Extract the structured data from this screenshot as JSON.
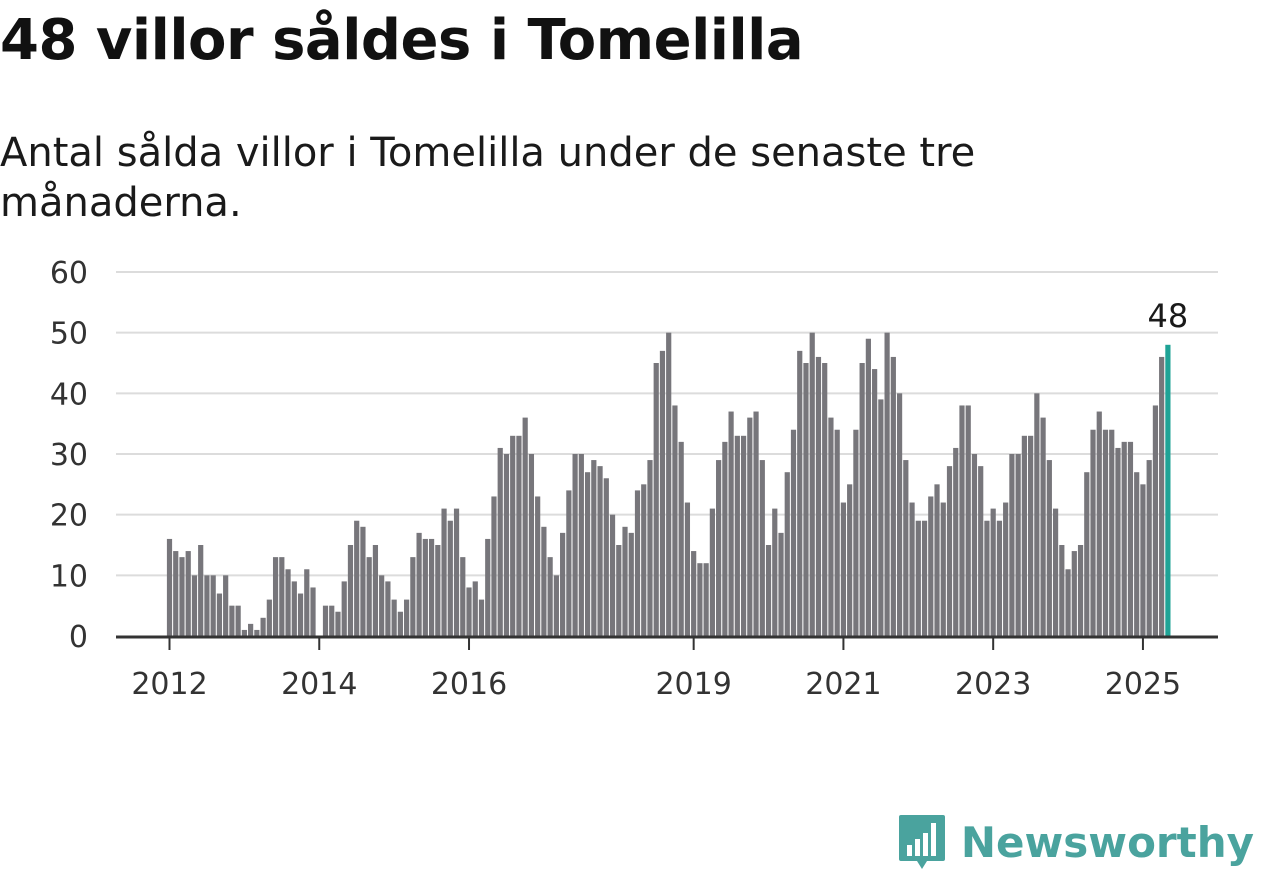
{
  "title": "48 villor såldes i Tomelilla",
  "subtitle": "Antal sålda villor i Tomelilla under de senaste tre månaderna.",
  "brand": {
    "name": "Newsworthy",
    "logo_icon": "newsworthy-bar-chart-logo-icon"
  },
  "colors": {
    "bar": "#77767b",
    "highlight": "#1fa396",
    "grid": "#dcdcdc",
    "axis": "#333333",
    "brand": "#4aa39e"
  },
  "chart_data": {
    "type": "bar",
    "title": "48 villor såldes i Tomelilla",
    "subtitle": "Antal sålda villor i Tomelilla under de senaste tre månaderna.",
    "xlabel": "",
    "ylabel": "",
    "ylim": [
      0,
      60
    ],
    "yticks": [
      0,
      10,
      20,
      30,
      40,
      50,
      60
    ],
    "grid": true,
    "x_start": "2012-01",
    "xticks": [
      {
        "label": "2012",
        "index": 0
      },
      {
        "label": "2014",
        "index": 24
      },
      {
        "label": "2016",
        "index": 48
      },
      {
        "label": "2019",
        "index": 84
      },
      {
        "label": "2021",
        "index": 108
      },
      {
        "label": "2023",
        "index": 132
      },
      {
        "label": "2025",
        "index": 156
      }
    ],
    "values": [
      16,
      14,
      13,
      14,
      10,
      15,
      10,
      10,
      7,
      10,
      5,
      5,
      1,
      2,
      1,
      3,
      6,
      13,
      13,
      11,
      9,
      7,
      11,
      8,
      0,
      5,
      5,
      4,
      9,
      15,
      19,
      18,
      13,
      15,
      10,
      9,
      6,
      4,
      6,
      13,
      17,
      16,
      16,
      15,
      21,
      19,
      21,
      13,
      8,
      9,
      6,
      16,
      23,
      31,
      30,
      33,
      33,
      36,
      30,
      23,
      18,
      13,
      10,
      17,
      24,
      30,
      30,
      27,
      29,
      28,
      26,
      20,
      15,
      18,
      17,
      24,
      25,
      29,
      45,
      47,
      50,
      38,
      32,
      22,
      14,
      12,
      12,
      21,
      29,
      32,
      37,
      33,
      33,
      36,
      37,
      29,
      15,
      21,
      17,
      27,
      34,
      47,
      45,
      50,
      46,
      45,
      36,
      34,
      22,
      25,
      34,
      45,
      49,
      44,
      39,
      50,
      46,
      40,
      29,
      22,
      19,
      19,
      23,
      25,
      22,
      28,
      31,
      38,
      38,
      30,
      28,
      19,
      21,
      19,
      22,
      30,
      30,
      33,
      33,
      40,
      36,
      29,
      21,
      15,
      11,
      14,
      15,
      27,
      34,
      37,
      34,
      34,
      31,
      32,
      32,
      27,
      25,
      29,
      38,
      46,
      48
    ],
    "highlight": {
      "index": 160,
      "value": 48,
      "label": "48"
    }
  }
}
